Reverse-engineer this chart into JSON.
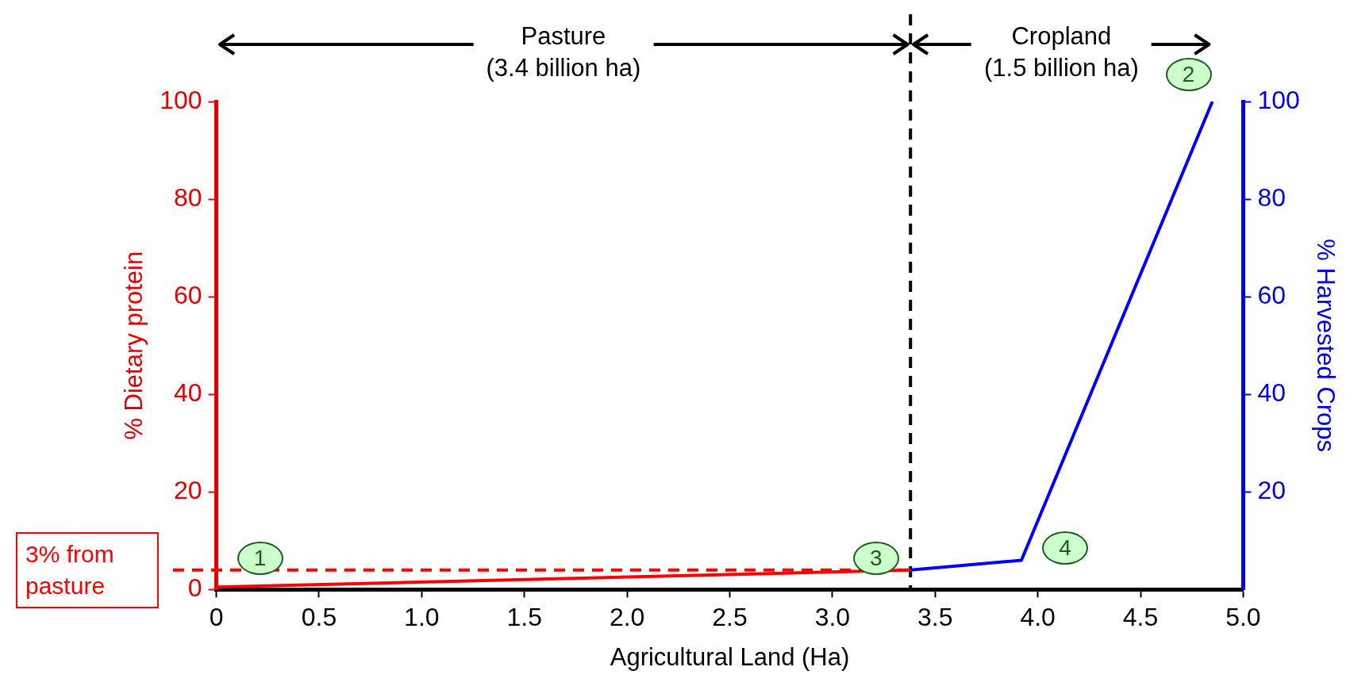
{
  "chart_data": {
    "type": "line",
    "xlabel": "Agricultural Land (Ha)",
    "ylabel": "% Dietary protein",
    "y2label": "% Harvested Crops",
    "xlim": [
      0,
      5
    ],
    "xticks": [
      0,
      0.5,
      {
        "value": 1,
        "label": "1.0"
      },
      1.5,
      {
        "value": 2,
        "label": "2.0"
      },
      2.5,
      {
        "value": 3,
        "label": "3.0"
      },
      3.5,
      {
        "value": 4,
        "label": "4.0"
      },
      4.5,
      {
        "value": 5,
        "label": "5.0"
      }
    ],
    "ylim": [
      0,
      100
    ],
    "yticks": [
      0,
      20,
      40,
      60,
      80,
      100
    ],
    "y2lim": [
      0,
      100
    ],
    "y2ticks": [
      20,
      40,
      60,
      80,
      100
    ],
    "series": [
      {
        "color": "#ff0000",
        "x": [
          0,
          3.38
        ],
        "values": [
          0.5,
          4
        ]
      },
      {
        "color": "#0000ff",
        "axis": "y2",
        "x": [
          3.38,
          3.92,
          4.85
        ],
        "values": [
          4,
          6,
          100
        ]
      }
    ],
    "ref_lines": [
      {
        "axis": "y",
        "value": 4,
        "label": "3% from pasture",
        "color": "#ff0000",
        "line_style": "dashed"
      },
      {
        "axis": "x",
        "value": 3.38,
        "color": "#000000",
        "line_style": "dashed"
      }
    ],
    "annotations": [
      "Pasture\n(3.4 billion ha)",
      "Cropland\n(1.5 billion ha)",
      {
        "text": "1",
        "x": 0,
        "y": 4
      },
      {
        "text": "2",
        "x": 4.85,
        "y": 100
      },
      {
        "text": "3",
        "x": 3,
        "y": 4
      },
      {
        "text": "4",
        "x": 3.92,
        "y": 6
      }
    ],
    "grid": false,
    "legend": false,
    "marker": "none",
    "line_style": "solid"
  }
}
